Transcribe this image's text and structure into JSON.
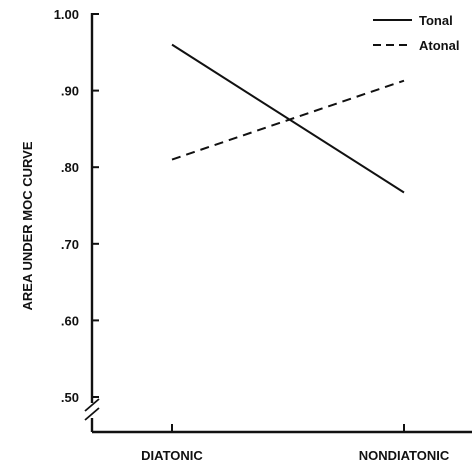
{
  "chart_data": {
    "type": "line",
    "title": "",
    "xlabel": "",
    "ylabel": "AREA UNDER MOC CURVE",
    "categories": [
      "DIATONIC",
      "NONDIATONIC"
    ],
    "ylim": [
      0.5,
      1.0
    ],
    "yticks": [
      1.0,
      0.9,
      0.8,
      0.7,
      0.6,
      0.5
    ],
    "ytick_labels": [
      "1.00",
      ".90",
      ".80",
      ".70",
      ".60",
      ".50"
    ],
    "axis_break": true,
    "grid": false,
    "legend_position": "top-right",
    "series": [
      {
        "name": "Tonal",
        "style": "solid",
        "values": [
          0.96,
          0.767
        ]
      },
      {
        "name": "Atonal",
        "style": "dashed",
        "values": [
          0.81,
          0.913
        ]
      }
    ]
  }
}
